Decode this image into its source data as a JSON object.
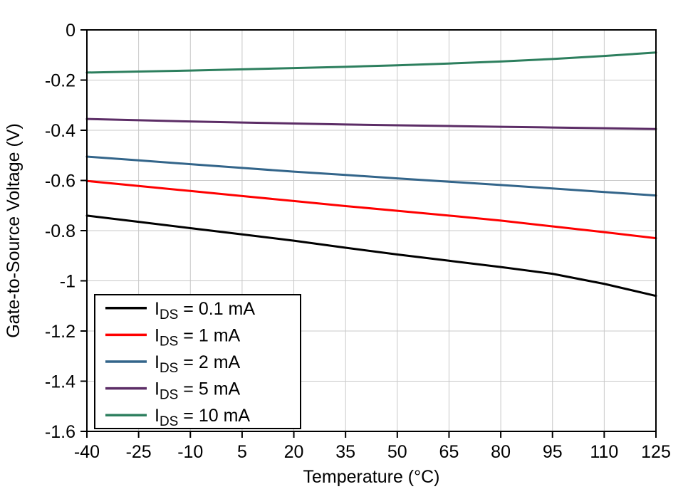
{
  "chart_data": {
    "type": "line",
    "title": "",
    "xlabel": "Temperature (°C)",
    "ylabel": "Gate-to-Source Voltage (V)",
    "xlim": [
      -40,
      125
    ],
    "ylim": [
      -1.6,
      0
    ],
    "grid": true,
    "legend_position": "bottom-left",
    "colors": {
      "grid": "#c8c8c8",
      "axis": "#000000",
      "background": "#ffffff"
    },
    "xticks": [
      -40,
      -25,
      -10,
      5,
      20,
      35,
      50,
      65,
      80,
      95,
      110,
      125
    ],
    "xtick_labels": [
      "-40",
      "-25",
      "-10",
      "5",
      "20",
      "35",
      "50",
      "65",
      "80",
      "95",
      "110",
      "125"
    ],
    "yticks": [
      0,
      -0.2,
      -0.4,
      -0.6,
      -0.8,
      -1,
      -1.2,
      -1.4,
      -1.6
    ],
    "ytick_labels": [
      "0",
      "-0.2",
      "-0.4",
      "-0.6",
      "-0.8",
      "-1",
      "-1.2",
      "-1.4",
      "-1.6"
    ],
    "x": [
      -40,
      -25,
      -10,
      5,
      20,
      35,
      50,
      65,
      80,
      95,
      110,
      125
    ],
    "series": [
      {
        "name": "IDS = 0.1 mA",
        "label_base": "I",
        "label_sub": "DS",
        "label_rest": " = 0.1 mA",
        "color": "#000000",
        "values": [
          -0.74,
          -0.765,
          -0.79,
          -0.815,
          -0.84,
          -0.868,
          -0.895,
          -0.92,
          -0.945,
          -0.972,
          -1.012,
          -1.06
        ]
      },
      {
        "name": "IDS = 1 mA",
        "label_base": "I",
        "label_sub": "DS",
        "label_rest": " = 1 mA",
        "color": "#ff0000",
        "values": [
          -0.602,
          -0.622,
          -0.642,
          -0.662,
          -0.682,
          -0.702,
          -0.721,
          -0.74,
          -0.76,
          -0.783,
          -0.806,
          -0.83
        ]
      },
      {
        "name": "IDS = 2 mA",
        "label_base": "I",
        "label_sub": "DS",
        "label_rest": " = 2 mA",
        "color": "#33658a",
        "values": [
          -0.505,
          -0.52,
          -0.535,
          -0.55,
          -0.565,
          -0.578,
          -0.592,
          -0.605,
          -0.618,
          -0.632,
          -0.646,
          -0.66
        ]
      },
      {
        "name": "IDS = 5 mA",
        "label_base": "I",
        "label_sub": "DS",
        "label_rest": " = 5 mA",
        "color": "#5c2d66",
        "values": [
          -0.355,
          -0.36,
          -0.365,
          -0.369,
          -0.373,
          -0.377,
          -0.38,
          -0.383,
          -0.386,
          -0.389,
          -0.392,
          -0.395
        ]
      },
      {
        "name": "IDS = 10 mA",
        "label_base": "I",
        "label_sub": "DS",
        "label_rest": " = 10 mA",
        "color": "#2d7f5e",
        "values": [
          -0.17,
          -0.166,
          -0.162,
          -0.157,
          -0.152,
          -0.147,
          -0.141,
          -0.134,
          -0.126,
          -0.116,
          -0.104,
          -0.09
        ]
      }
    ]
  }
}
